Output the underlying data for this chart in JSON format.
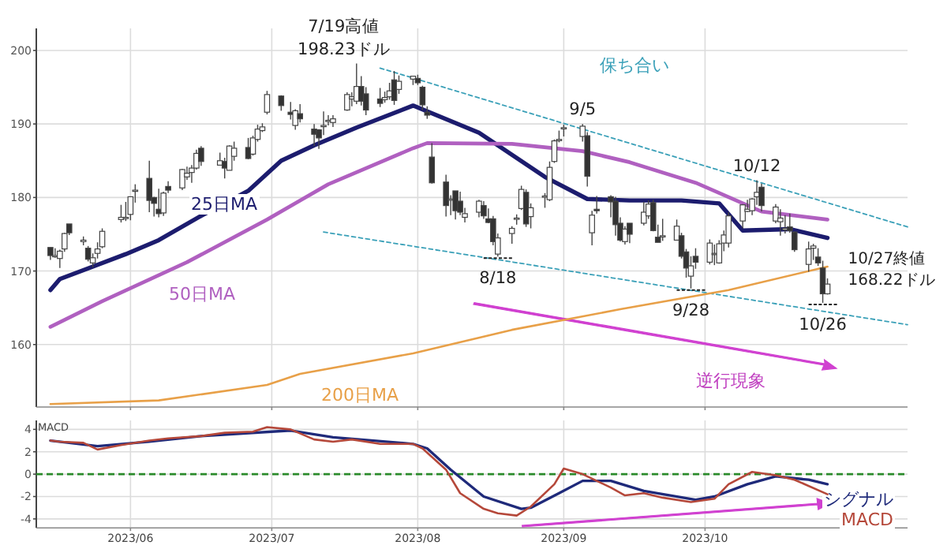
{
  "chart_data": [
    {
      "type": "candlestick",
      "xlim": [
        "2023-05-12",
        "2023-11-13"
      ],
      "ylim": [
        151.5,
        203
      ],
      "yticks": [
        160,
        170,
        180,
        190,
        200
      ],
      "xticks": [
        {
          "value": "2023-06-01",
          "label": null
        },
        {
          "value": "2023-07-01",
          "label": null
        },
        {
          "value": "2023-08-01",
          "label": null
        },
        {
          "value": "2023-09-01",
          "label": null
        },
        {
          "value": "2023-10-01",
          "label": null
        }
      ],
      "tick_labels": "y",
      "grid": true,
      "x": [
        "2023-05-15",
        "2023-05-16",
        "2023-05-17",
        "2023-05-18",
        "2023-05-19",
        "2023-05-22",
        "2023-05-23",
        "2023-05-24",
        "2023-05-25",
        "2023-05-26",
        "2023-05-30",
        "2023-05-31",
        "2023-06-01",
        "2023-06-02",
        "2023-06-05",
        "2023-06-06",
        "2023-06-07",
        "2023-06-08",
        "2023-06-09",
        "2023-06-12",
        "2023-06-13",
        "2023-06-14",
        "2023-06-15",
        "2023-06-16",
        "2023-06-20",
        "2023-06-21",
        "2023-06-22",
        "2023-06-23",
        "2023-06-26",
        "2023-06-27",
        "2023-06-28",
        "2023-06-29",
        "2023-06-30",
        "2023-07-03",
        "2023-07-05",
        "2023-07-06",
        "2023-07-07",
        "2023-07-10",
        "2023-07-11",
        "2023-07-12",
        "2023-07-13",
        "2023-07-14",
        "2023-07-17",
        "2023-07-18",
        "2023-07-19",
        "2023-07-20",
        "2023-07-21",
        "2023-07-24",
        "2023-07-25",
        "2023-07-26",
        "2023-07-27",
        "2023-07-28",
        "2023-07-31",
        "2023-08-01",
        "2023-08-02",
        "2023-08-03",
        "2023-08-04",
        "2023-08-07",
        "2023-08-08",
        "2023-08-09",
        "2023-08-10",
        "2023-08-11",
        "2023-08-14",
        "2023-08-15",
        "2023-08-16",
        "2023-08-17",
        "2023-08-18",
        "2023-08-21",
        "2023-08-22",
        "2023-08-23",
        "2023-08-24",
        "2023-08-25",
        "2023-08-28",
        "2023-08-29",
        "2023-08-30",
        "2023-08-31",
        "2023-09-01",
        "2023-09-05",
        "2023-09-06",
        "2023-09-07",
        "2023-09-08",
        "2023-09-11",
        "2023-09-12",
        "2023-09-13",
        "2023-09-14",
        "2023-09-15",
        "2023-09-18",
        "2023-09-19",
        "2023-09-20",
        "2023-09-21",
        "2023-09-22",
        "2023-09-25",
        "2023-09-26",
        "2023-09-27",
        "2023-09-28",
        "2023-09-29",
        "2023-10-02",
        "2023-10-03",
        "2023-10-04",
        "2023-10-05",
        "2023-10-06",
        "2023-10-09",
        "2023-10-10",
        "2023-10-11",
        "2023-10-12",
        "2023-10-13",
        "2023-10-16",
        "2023-10-17",
        "2023-10-18",
        "2023-10-19",
        "2023-10-20",
        "2023-10-23",
        "2023-10-24",
        "2023-10-25",
        "2023-10-26",
        "2023-10-27"
      ],
      "ohlc": [
        [
          173.2,
          173.2,
          171.5,
          172.1
        ],
        [
          172.0,
          173.1,
          171.8,
          172.1
        ],
        [
          171.7,
          172.9,
          170.4,
          172.7
        ],
        [
          173.0,
          175.2,
          172.6,
          175.1
        ],
        [
          176.4,
          176.4,
          174.9,
          175.2
        ],
        [
          174.0,
          174.7,
          173.5,
          174.2
        ],
        [
          173.1,
          173.4,
          171.3,
          171.6
        ],
        [
          171.1,
          172.4,
          170.5,
          171.8
        ],
        [
          172.4,
          173.9,
          171.7,
          173.0
        ],
        [
          173.3,
          175.8,
          173.1,
          175.4
        ],
        [
          177.0,
          179.0,
          176.6,
          177.3
        ],
        [
          177.3,
          179.4,
          176.8,
          177.3
        ],
        [
          177.7,
          180.1,
          176.9,
          180.1
        ],
        [
          181.0,
          181.8,
          179.3,
          181.0
        ],
        [
          182.6,
          185.0,
          178.0,
          179.6
        ],
        [
          180.0,
          180.1,
          177.4,
          179.2
        ],
        [
          178.4,
          181.2,
          177.3,
          177.8
        ],
        [
          177.9,
          180.8,
          177.5,
          180.6
        ],
        [
          181.5,
          182.2,
          180.6,
          181.0
        ],
        [
          181.3,
          183.9,
          181.0,
          183.8
        ],
        [
          182.8,
          184.2,
          182.4,
          183.3
        ],
        [
          183.4,
          184.4,
          182.0,
          184.0
        ],
        [
          184.0,
          186.5,
          183.8,
          186.0
        ],
        [
          186.7,
          187.0,
          184.3,
          184.9
        ],
        [
          184.4,
          186.1,
          184.4,
          185.0
        ],
        [
          184.9,
          185.4,
          182.6,
          184.0
        ],
        [
          183.7,
          187.1,
          183.7,
          187.0
        ],
        [
          185.6,
          187.6,
          185.0,
          186.7
        ],
        [
          186.8,
          188.1,
          185.2,
          185.3
        ],
        [
          185.9,
          188.4,
          185.7,
          188.1
        ],
        [
          187.9,
          189.9,
          187.6,
          189.3
        ],
        [
          189.1,
          190.1,
          188.9,
          189.6
        ],
        [
          191.6,
          194.5,
          191.3,
          194.0
        ],
        [
          193.8,
          193.9,
          191.8,
          192.5
        ],
        [
          191.6,
          193.0,
          190.6,
          191.3
        ],
        [
          189.8,
          192.0,
          189.2,
          191.8
        ],
        [
          191.4,
          192.7,
          190.2,
          190.7
        ],
        [
          189.3,
          190.0,
          187.0,
          188.6
        ],
        [
          189.2,
          189.3,
          186.6,
          188.1
        ],
        [
          189.7,
          191.7,
          188.5,
          189.8
        ],
        [
          190.5,
          191.2,
          189.8,
          190.5
        ],
        [
          190.2,
          191.2,
          189.6,
          190.7
        ],
        [
          191.9,
          194.3,
          191.8,
          194.0
        ],
        [
          193.4,
          194.3,
          192.4,
          193.7
        ],
        [
          193.1,
          198.23,
          192.7,
          195.1
        ],
        [
          195.1,
          196.5,
          192.5,
          193.1
        ],
        [
          194.1,
          195.0,
          191.2,
          191.9
        ],
        [
          193.4,
          194.9,
          192.3,
          192.8
        ],
        [
          193.3,
          194.4,
          192.9,
          193.6
        ],
        [
          193.7,
          195.6,
          193.3,
          194.5
        ],
        [
          196.0,
          197.2,
          192.6,
          193.2
        ],
        [
          194.7,
          196.6,
          194.1,
          195.8
        ],
        [
          196.1,
          196.5,
          195.3,
          196.5
        ],
        [
          196.2,
          196.7,
          195.3,
          195.6
        ],
        [
          195.0,
          195.2,
          191.9,
          192.6
        ],
        [
          191.6,
          192.4,
          190.7,
          191.2
        ],
        [
          185.5,
          187.4,
          181.9,
          182.0
        ],
        [
          182.1,
          183.1,
          177.4,
          178.9
        ],
        [
          179.7,
          180.3,
          177.6,
          179.8
        ],
        [
          180.9,
          180.9,
          177.0,
          178.2
        ],
        [
          179.5,
          180.8,
          177.6,
          178.0
        ],
        [
          177.3,
          178.6,
          176.6,
          177.8
        ],
        [
          178.0,
          179.7,
          177.3,
          179.5
        ],
        [
          178.9,
          179.5,
          177.1,
          177.5
        ],
        [
          177.1,
          178.5,
          176.5,
          176.6
        ],
        [
          177.1,
          177.5,
          173.5,
          174.0
        ],
        [
          172.3,
          175.1,
          171.96,
          174.5
        ],
        [
          175.1,
          176.1,
          173.7,
          175.8
        ],
        [
          177.1,
          177.7,
          176.3,
          177.2
        ],
        [
          178.5,
          181.6,
          178.3,
          181.1
        ],
        [
          180.7,
          181.1,
          176.0,
          176.4
        ],
        [
          177.4,
          179.2,
          175.8,
          178.6
        ],
        [
          180.1,
          180.6,
          178.6,
          180.2
        ],
        [
          179.7,
          184.9,
          179.5,
          184.1
        ],
        [
          184.9,
          187.9,
          184.7,
          187.7
        ],
        [
          187.8,
          189.1,
          187.5,
          187.9
        ],
        [
          189.5,
          189.9,
          188.3,
          189.5
        ],
        [
          188.3,
          189.98,
          187.6,
          189.7
        ],
        [
          188.4,
          188.9,
          181.5,
          182.9
        ],
        [
          175.2,
          178.2,
          173.5,
          177.6
        ],
        [
          178.4,
          180.2,
          177.8,
          178.2
        ],
        [
          180.1,
          180.3,
          177.3,
          179.4
        ],
        [
          179.5,
          180.1,
          174.8,
          176.3
        ],
        [
          176.5,
          177.3,
          174.0,
          174.2
        ],
        [
          174.0,
          176.1,
          173.6,
          175.7
        ],
        [
          176.5,
          176.5,
          173.8,
          175.0
        ],
        [
          176.5,
          179.4,
          176.2,
          178.0
        ],
        [
          177.5,
          179.6,
          177.1,
          179.1
        ],
        [
          179.3,
          179.7,
          175.4,
          175.5
        ],
        [
          174.6,
          176.3,
          173.9,
          173.9
        ],
        [
          174.7,
          177.1,
          174.1,
          174.8
        ],
        [
          174.2,
          177.0,
          174.2,
          176.1
        ],
        [
          174.8,
          175.2,
          171.7,
          172.0
        ],
        [
          172.6,
          173.0,
          169.1,
          170.4
        ],
        [
          169.3,
          172.0,
          167.62,
          170.7
        ],
        [
          172.0,
          173.1,
          170.3,
          171.2
        ],
        [
          171.2,
          174.3,
          170.9,
          173.8
        ],
        [
          172.3,
          173.6,
          170.8,
          172.4
        ],
        [
          171.1,
          174.2,
          171.0,
          173.7
        ],
        [
          173.8,
          175.5,
          172.7,
          174.9
        ],
        [
          173.8,
          178.0,
          173.2,
          177.5
        ],
        [
          176.8,
          179.1,
          175.8,
          179.0
        ],
        [
          178.1,
          179.7,
          178.0,
          178.4
        ],
        [
          178.2,
          179.9,
          177.6,
          179.8
        ],
        [
          180.1,
          182.34,
          179.0,
          180.7
        ],
        [
          181.4,
          181.9,
          178.1,
          178.9
        ],
        [
          176.8,
          179.1,
          176.5,
          178.7
        ],
        [
          176.7,
          178.4,
          174.8,
          177.2
        ],
        [
          175.6,
          177.6,
          175.1,
          175.8
        ],
        [
          176.0,
          177.8,
          175.2,
          175.5
        ],
        [
          175.3,
          175.4,
          172.6,
          172.9
        ],
        [
          170.9,
          174.0,
          169.9,
          173.0
        ],
        [
          173.1,
          173.7,
          171.5,
          173.4
        ],
        [
          171.9,
          173.1,
          170.7,
          171.1
        ],
        [
          170.4,
          171.4,
          165.67,
          166.9
        ],
        [
          166.9,
          169.0,
          166.8,
          168.22
        ]
      ],
      "series": [
        {
          "name": "25日MA",
          "type": "line",
          "color": "#1c1c6e",
          "x": [
            "2023-05-15",
            "2023-05-17",
            "2023-05-24",
            "2023-05-31",
            "2023-06-07",
            "2023-06-16",
            "2023-06-26",
            "2023-07-03",
            "2023-07-10",
            "2023-07-19",
            "2023-07-31",
            "2023-08-14",
            "2023-08-28",
            "2023-09-06",
            "2023-09-15",
            "2023-09-26",
            "2023-10-04",
            "2023-10-09",
            "2023-10-19",
            "2023-10-27"
          ],
          "values": [
            167.4,
            168.9,
            170.6,
            172.3,
            174.2,
            177.5,
            180.9,
            185.0,
            187.1,
            189.5,
            192.5,
            188.8,
            182.8,
            179.8,
            179.6,
            179.6,
            179.2,
            175.5,
            175.7,
            174.5
          ]
        },
        {
          "name": "50日MA",
          "type": "line",
          "color": "#b060c0",
          "x": [
            "2023-05-15",
            "2023-05-26",
            "2023-06-13",
            "2023-06-30",
            "2023-07-13",
            "2023-07-31",
            "2023-08-03",
            "2023-08-21",
            "2023-09-05",
            "2023-09-15",
            "2023-09-29",
            "2023-10-13",
            "2023-10-27"
          ],
          "values": [
            162.4,
            165.9,
            171.2,
            177.0,
            181.8,
            186.7,
            187.4,
            187.3,
            186.3,
            184.8,
            182.0,
            178.1,
            177.0
          ]
        },
        {
          "type": "line",
          "color": "#3aa0b8",
          "line_style": "dashed",
          "x": [
            "2023-07-24",
            "2023-11-13"
          ],
          "values": [
            197.6,
            176.0
          ]
        },
        {
          "type": "line",
          "color": "#3aa0b8",
          "line_style": "dashed",
          "x": [
            "2023-07-12",
            "2023-11-13"
          ],
          "values": [
            175.3,
            162.7
          ]
        },
        {
          "name": "200日MA",
          "type": "line",
          "color": "#e8a048",
          "x": [
            "2023-05-15",
            "2023-06-07",
            "2023-06-30",
            "2023-07-07",
            "2023-07-31",
            "2023-08-21",
            "2023-09-13",
            "2023-10-06",
            "2023-10-27"
          ],
          "values": [
            151.9,
            152.4,
            154.5,
            156.0,
            158.8,
            162.0,
            164.8,
            167.4,
            170.6
          ]
        }
      ],
      "annotations": [
        {
          "text": "7/19高値\n198.23ドル",
          "x": "2023-07-19",
          "y": 198.23
        },
        {
          "text": "9/5",
          "x": "2023-09-05",
          "y": 189.98
        },
        {
          "text": "10/12",
          "x": "2023-10-12",
          "y": 182.34
        },
        {
          "text": "8/18",
          "x": "2023-08-18",
          "y": 171.96
        },
        {
          "text": "9/28",
          "x": "2023-09-28",
          "y": 167.62
        },
        {
          "text": "10/26",
          "x": "2023-10-26",
          "y": 165.67
        },
        {
          "text": "10/27終値\n168.22ドル",
          "x": "2023-10-27",
          "y": 168.22
        },
        "保ち合い",
        "逆行現象"
      ]
    },
    {
      "type": "line",
      "title": "MACD",
      "xlim": [
        "2023-05-12",
        "2023-11-13"
      ],
      "ylim": [
        -4.8,
        4.8
      ],
      "yticks": [
        -4,
        -2,
        0,
        2,
        4
      ],
      "xticks": [
        {
          "value": "2023-06-01",
          "label": "2023/06"
        },
        {
          "value": "2023-07-01",
          "label": "2023/07"
        },
        {
          "value": "2023-08-01",
          "label": "2023/08"
        },
        {
          "value": "2023-09-01",
          "label": "2023/09"
        },
        {
          "value": "2023-10-01",
          "label": "2023/10"
        }
      ],
      "grid": true,
      "ref_lines": [
        {
          "axis": "y",
          "value": 0,
          "color": "#2a8a2a",
          "line_style": "dashed"
        }
      ],
      "series": [
        {
          "name": "シグナル",
          "color": "#1f2a7a",
          "x": [
            "2023-05-15",
            "2023-05-19",
            "2023-05-25",
            "2023-06-05",
            "2023-06-16",
            "2023-07-05",
            "2023-07-14",
            "2023-07-31",
            "2023-08-03",
            "2023-08-08",
            "2023-08-15",
            "2023-08-23",
            "2023-08-25",
            "2023-08-31",
            "2023-09-05",
            "2023-09-11",
            "2023-09-18",
            "2023-09-29",
            "2023-10-03",
            "2023-10-10",
            "2023-10-16",
            "2023-10-23",
            "2023-10-27"
          ],
          "values": [
            3.0,
            2.8,
            2.5,
            2.9,
            3.4,
            3.9,
            3.3,
            2.7,
            2.3,
            0.4,
            -2.0,
            -3.1,
            -3.0,
            -1.7,
            -0.6,
            -0.6,
            -1.5,
            -2.3,
            -2.0,
            -0.9,
            -0.2,
            -0.5,
            -0.9
          ]
        },
        {
          "name": "MACD",
          "color": "#b5483a",
          "x": [
            "2023-05-15",
            "2023-05-17",
            "2023-05-22",
            "2023-05-25",
            "2023-05-30",
            "2023-06-05",
            "2023-06-09",
            "2023-06-16",
            "2023-06-21",
            "2023-06-27",
            "2023-06-30",
            "2023-07-05",
            "2023-07-10",
            "2023-07-14",
            "2023-07-18",
            "2023-07-24",
            "2023-07-31",
            "2023-08-02",
            "2023-08-07",
            "2023-08-10",
            "2023-08-15",
            "2023-08-18",
            "2023-08-22",
            "2023-08-25",
            "2023-08-30",
            "2023-09-01",
            "2023-09-05",
            "2023-09-11",
            "2023-09-14",
            "2023-09-18",
            "2023-09-22",
            "2023-09-28",
            "2023-10-03",
            "2023-10-06",
            "2023-10-11",
            "2023-10-16",
            "2023-10-20",
            "2023-10-27"
          ],
          "values": [
            3.0,
            2.9,
            2.8,
            2.2,
            2.6,
            3.0,
            3.2,
            3.4,
            3.7,
            3.8,
            4.2,
            4.0,
            3.1,
            2.9,
            3.1,
            2.7,
            2.7,
            2.3,
            0.4,
            -1.7,
            -3.1,
            -3.5,
            -3.7,
            -2.9,
            -0.9,
            0.5,
            0.0,
            -1.2,
            -1.9,
            -1.7,
            -2.1,
            -2.5,
            -2.2,
            -0.9,
            0.2,
            -0.1,
            -0.5,
            -1.8
          ]
        }
      ]
    }
  ]
}
